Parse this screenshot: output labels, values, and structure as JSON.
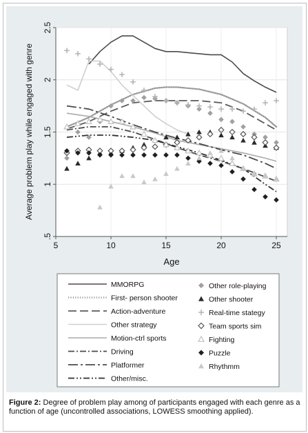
{
  "caption": {
    "label": "Figure 2:",
    "text": "Degree of problem play among of participants engaged with each genre as a function of age (uncontrolled associations, LOWESS smoothing applied)."
  },
  "chart_data": {
    "type": "line",
    "xlabel": "Age",
    "ylabel": "Average problem play while engaged with genre",
    "xlim": [
      5,
      26
    ],
    "ylim": [
      0.5,
      2.5
    ],
    "x_ticks": [
      5,
      10,
      15,
      20,
      25
    ],
    "y_ticks": [
      0.5,
      1,
      1.5,
      2,
      2.5
    ],
    "y_tick_labels": [
      ".5",
      "1",
      "1.5",
      "2",
      "2.5"
    ],
    "grid": true,
    "legend_placement": "bottom",
    "series": [
      {
        "name": "MMORPG",
        "kind": "line",
        "style": "solid",
        "color": "#4a4a4a",
        "x": [
          8,
          9,
          10,
          11,
          12,
          13,
          14,
          15,
          16,
          17,
          18,
          19,
          20,
          21,
          22,
          23,
          24,
          25
        ],
        "y": [
          2.15,
          2.27,
          2.36,
          2.42,
          2.42,
          2.36,
          2.3,
          2.27,
          2.27,
          2.26,
          2.25,
          2.24,
          2.24,
          2.17,
          2.06,
          1.99,
          1.93,
          1.88
        ]
      },
      {
        "name": "First- person shooter",
        "kind": "line",
        "style": "dotted",
        "color": "#9a9a9a",
        "x": [
          6,
          8,
          10,
          12,
          14,
          15,
          16,
          18,
          20,
          22,
          24,
          25
        ],
        "y": [
          1.55,
          1.64,
          1.76,
          1.86,
          1.92,
          1.93,
          1.93,
          1.91,
          1.86,
          1.77,
          1.64,
          1.55
        ]
      },
      {
        "name": "Action-adventure",
        "kind": "line",
        "style": "longdash",
        "color": "#5a5a5a",
        "x": [
          6,
          8,
          10,
          12,
          14,
          16,
          18,
          20,
          22,
          24,
          25
        ],
        "y": [
          1.53,
          1.6,
          1.7,
          1.78,
          1.8,
          1.8,
          1.8,
          1.78,
          1.7,
          1.58,
          1.52
        ]
      },
      {
        "name": "Other strategy",
        "kind": "line",
        "style": "solid",
        "color": "#cfcfcf",
        "x": [
          6,
          7,
          8,
          9,
          10,
          11,
          12,
          13,
          14,
          15,
          16,
          17
        ],
        "y": [
          1.95,
          1.9,
          2.18,
          2.18,
          2.08,
          1.95,
          1.85,
          1.75,
          1.65,
          1.58,
          1.52,
          1.48
        ]
      },
      {
        "name": "Motion-ctrl sports",
        "kind": "line",
        "style": "solid",
        "color": "#aaaaaa",
        "x": [
          6,
          8,
          10,
          12,
          14,
          16,
          18,
          20,
          22,
          24,
          25
        ],
        "y": [
          1.68,
          1.65,
          1.6,
          1.55,
          1.49,
          1.42,
          1.38,
          1.34,
          1.3,
          1.25,
          1.22
        ]
      },
      {
        "name": "Driving",
        "kind": "line",
        "style": "dashdot",
        "color": "#4a4a4a",
        "x": [
          6,
          8,
          10,
          12,
          14,
          16,
          18,
          20,
          22,
          24,
          25
        ],
        "y": [
          1.52,
          1.55,
          1.55,
          1.5,
          1.43,
          1.35,
          1.28,
          1.22,
          1.15,
          1.07,
          1.03
        ]
      },
      {
        "name": "Platformer",
        "kind": "line",
        "style": "dashdot2",
        "color": "#4a4a4a",
        "x": [
          6,
          8,
          10,
          12,
          14,
          16,
          18,
          20,
          22,
          24,
          25
        ],
        "y": [
          1.75,
          1.72,
          1.65,
          1.57,
          1.5,
          1.44,
          1.39,
          1.33,
          1.28,
          1.2,
          1.15
        ]
      },
      {
        "name": "Other/misc.",
        "kind": "line",
        "style": "dashdotdot",
        "color": "#2f2f2f",
        "x": [
          6,
          8,
          10,
          12,
          14,
          16,
          18,
          20,
          22,
          24,
          25
        ],
        "y": [
          1.45,
          1.47,
          1.47,
          1.45,
          1.42,
          1.36,
          1.3,
          1.23,
          1.15,
          1.0,
          0.93
        ]
      },
      {
        "name": "Other role-playing",
        "kind": "scatter",
        "marker": "diamond",
        "color": "#a0a0a0",
        "x": [
          6,
          7,
          8,
          9,
          10,
          11,
          12,
          13,
          14,
          15,
          16,
          17,
          18,
          19,
          20,
          21,
          22,
          23,
          24,
          25
        ],
        "y": [
          1.25,
          1.5,
          1.45,
          1.6,
          1.75,
          1.8,
          1.8,
          1.83,
          1.82,
          1.8,
          1.78,
          1.75,
          1.72,
          1.68,
          1.62,
          1.6,
          1.55,
          1.48,
          1.45,
          1.4
        ]
      },
      {
        "name": "Other shooter",
        "kind": "scatter",
        "marker": "triangle",
        "color": "#2a2a2a",
        "x": [
          6,
          7,
          8,
          9,
          10,
          11,
          12,
          13,
          14,
          15,
          16,
          17,
          18,
          19,
          20,
          21,
          22,
          23,
          24,
          25
        ],
        "y": [
          1.15,
          1.2,
          1.25,
          1.3,
          1.3,
          1.32,
          1.35,
          1.38,
          1.42,
          1.45,
          1.45,
          1.48,
          1.5,
          1.5,
          1.47,
          1.45,
          1.42,
          1.4,
          1.37,
          1.35
        ]
      },
      {
        "name": "Real-time stategy",
        "kind": "scatter",
        "marker": "plus",
        "color": "#b5b5b5",
        "x": [
          6,
          7,
          8,
          9,
          10,
          11,
          12,
          13,
          14,
          15,
          16,
          17,
          18,
          19,
          20,
          21,
          22,
          23,
          24,
          25
        ],
        "y": [
          2.28,
          2.25,
          2.2,
          2.15,
          2.1,
          2.05,
          1.98,
          1.9,
          1.84,
          1.8,
          1.78,
          1.76,
          1.75,
          1.74,
          1.72,
          1.72,
          1.7,
          1.72,
          1.78,
          1.8
        ]
      },
      {
        "name": "Team sports sim",
        "kind": "scatter",
        "marker": "hollow-diamond",
        "color": "#555555",
        "x": [
          6,
          7,
          8,
          9,
          10,
          11,
          12,
          13,
          14,
          15,
          16,
          17,
          18,
          19,
          20,
          21,
          22,
          23,
          24,
          25
        ],
        "y": [
          1.3,
          1.32,
          1.33,
          1.32,
          1.32,
          1.32,
          1.33,
          1.35,
          1.36,
          1.38,
          1.4,
          1.42,
          1.45,
          1.48,
          1.52,
          1.5,
          1.48,
          1.45,
          1.4,
          1.35
        ]
      },
      {
        "name": "Fighting",
        "kind": "scatter",
        "marker": "hollow-triangle",
        "color": "#c0c0c0",
        "x": [
          6,
          7,
          8,
          9,
          10,
          11,
          12,
          13,
          14,
          15,
          16,
          17,
          18,
          19,
          20,
          21,
          22,
          23,
          24,
          25
        ],
        "y": [
          1.55,
          1.58,
          1.6,
          1.62,
          1.6,
          1.6,
          1.55,
          1.48,
          1.42,
          1.38,
          1.35,
          1.32,
          1.3,
          1.28,
          1.25,
          1.2,
          1.15,
          1.1,
          1.08,
          1.05
        ]
      },
      {
        "name": "Puzzle",
        "kind": "scatter",
        "marker": "diamond",
        "color": "#1f1f1f",
        "x": [
          6,
          7,
          8,
          9,
          10,
          11,
          12,
          13,
          14,
          15,
          16,
          17,
          18,
          19,
          20,
          21,
          22,
          23,
          24,
          25
        ],
        "y": [
          1.32,
          1.3,
          1.3,
          1.28,
          1.28,
          1.28,
          1.28,
          1.28,
          1.28,
          1.28,
          1.28,
          1.25,
          1.22,
          1.2,
          1.18,
          1.12,
          1.05,
          0.95,
          0.88,
          0.85
        ]
      },
      {
        "name": "Rhythmm",
        "kind": "scatter",
        "marker": "triangle",
        "color": "#c8c8c8",
        "x": [
          9,
          10,
          11,
          12,
          13,
          14,
          15,
          16,
          17,
          18,
          19,
          20,
          21,
          22,
          23,
          24,
          25
        ],
        "y": [
          0.78,
          0.98,
          1.08,
          1.08,
          1.02,
          1.05,
          1.1,
          1.15,
          1.2,
          1.25,
          1.3,
          1.32,
          1.25,
          1.15,
          1.1,
          1.08,
          1.05
        ]
      }
    ]
  }
}
